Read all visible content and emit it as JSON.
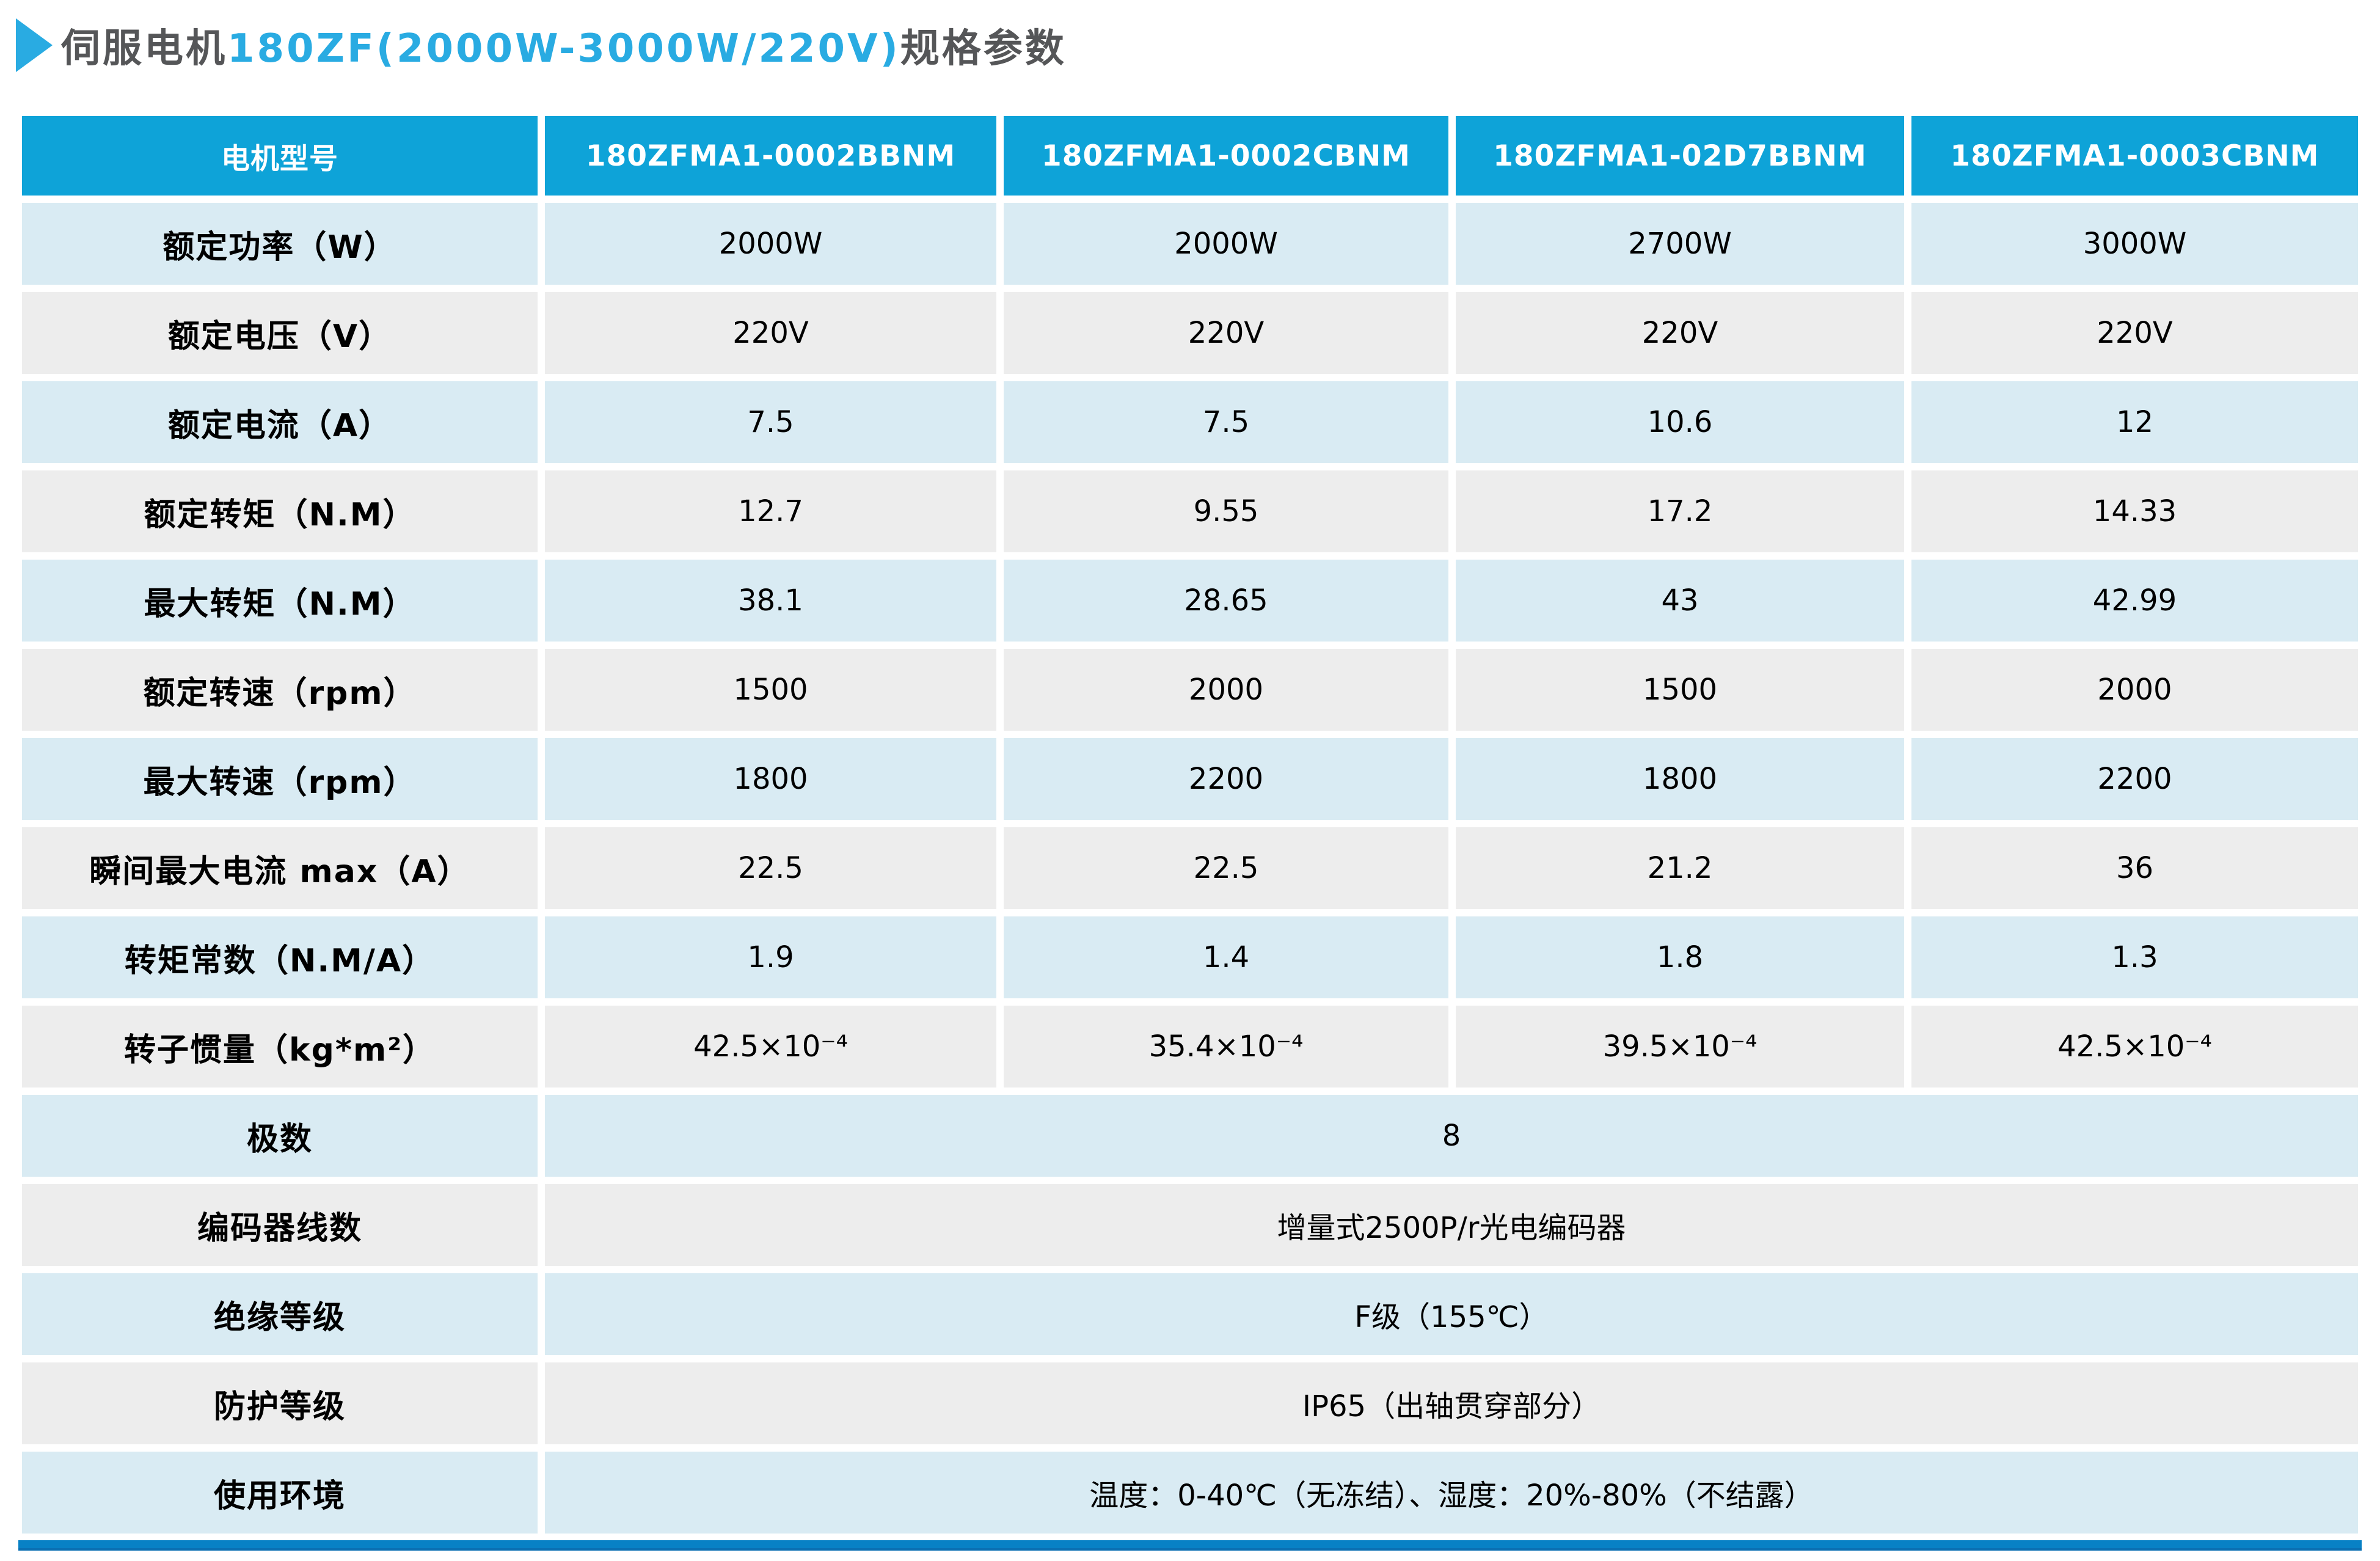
{
  "title": {
    "prefix": "伺服电机",
    "highlight": "180ZF(2000W-3000W/220V)",
    "suffix": "规格参数"
  },
  "colors": {
    "header_blue": "#0ea3d8",
    "row_blue": "#d9ebf3",
    "row_gray": "#ededed",
    "accent_blue": "#29abe2",
    "title_dark": "#555658",
    "bottom_bar": "#0881c5"
  },
  "table": {
    "header": [
      "电机型号",
      "180ZFMA1-0002BBNM",
      "180ZFMA1-0002CBNM",
      "180ZFMA1-02D7BBNM",
      "180ZFMA1-0003CBNM"
    ],
    "rows": [
      {
        "label": "额定功率（W）",
        "values": [
          "2000W",
          "2000W",
          "2700W",
          "3000W"
        ]
      },
      {
        "label": "额定电压（V）",
        "values": [
          "220V",
          "220V",
          "220V",
          "220V"
        ]
      },
      {
        "label": "额定电流（A）",
        "values": [
          "7.5",
          "7.5",
          "10.6",
          "12"
        ]
      },
      {
        "label": "额定转矩（N.M）",
        "values": [
          "12.7",
          "9.55",
          "17.2",
          "14.33"
        ]
      },
      {
        "label": "最大转矩（N.M）",
        "values": [
          "38.1",
          "28.65",
          "43",
          "42.99"
        ]
      },
      {
        "label": "额定转速（rpm）",
        "values": [
          "1500",
          "2000",
          "1500",
          "2000"
        ]
      },
      {
        "label": "最大转速（rpm）",
        "values": [
          "1800",
          "2200",
          "1800",
          "2200"
        ]
      },
      {
        "label": "瞬间最大电流 max（A）",
        "values": [
          "22.5",
          "22.5",
          "21.2",
          "36"
        ]
      },
      {
        "label": "转矩常数（N.M/A）",
        "values": [
          "1.9",
          "1.4",
          "1.8",
          "1.3"
        ]
      },
      {
        "label": "转子惯量（kg*m²）",
        "values": [
          "42.5×10⁻⁴",
          "35.4×10⁻⁴",
          "39.5×10⁻⁴",
          "42.5×10⁻⁴"
        ]
      },
      {
        "label": "极数",
        "span": "8"
      },
      {
        "label": "编码器线数",
        "span": "增量式2500P/r光电编码器"
      },
      {
        "label": "绝缘等级",
        "span": "F级（155℃）"
      },
      {
        "label": "防护等级",
        "span": "IP65（出轴贯穿部分）"
      },
      {
        "label": "使用环境",
        "span": "温度：0-40℃（无冻结）、湿度：20%-80%（不结露）"
      }
    ]
  }
}
